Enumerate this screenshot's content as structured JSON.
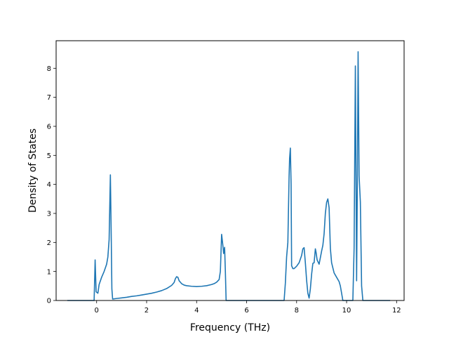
{
  "chart_data": {
    "type": "line",
    "title": "",
    "xlabel": "Frequency (THz)",
    "ylabel": "Density of States",
    "xlim": [
      -1.62,
      12.3
    ],
    "ylim": [
      0,
      8.95
    ],
    "xticks": [
      0,
      2,
      4,
      6,
      8,
      10,
      12
    ],
    "yticks": [
      0,
      1,
      2,
      3,
      4,
      5,
      6,
      7,
      8
    ],
    "xtick_labels": [
      "0",
      "2",
      "4",
      "6",
      "8",
      "10",
      "12"
    ],
    "ytick_labels": [
      "0",
      "1",
      "2",
      "3",
      "4",
      "5",
      "6",
      "7",
      "8"
    ],
    "grid": false,
    "legend": "none",
    "line_color": "#1f77b4",
    "series": [
      {
        "x": [
          -1.15,
          -0.1,
          -0.06,
          -0.02,
          0.05,
          0.1,
          0.2,
          0.3,
          0.4,
          0.45,
          0.5,
          0.55,
          0.58,
          0.61,
          0.64,
          0.8,
          1.0,
          1.2,
          1.4,
          1.6,
          1.8,
          2.0,
          2.2,
          2.4,
          2.6,
          2.8,
          3.0,
          3.1,
          3.15,
          3.2,
          3.25,
          3.3,
          3.4,
          3.5,
          3.6,
          3.8,
          4.0,
          4.2,
          4.4,
          4.6,
          4.7,
          4.8,
          4.9,
          4.95,
          5.0,
          5.05,
          5.08,
          5.12,
          5.15,
          5.18,
          5.3,
          6.0,
          7.0,
          7.5,
          7.55,
          7.6,
          7.65,
          7.7,
          7.72,
          7.75,
          7.78,
          7.8,
          7.85,
          7.9,
          8.0,
          8.1,
          8.2,
          8.25,
          8.3,
          8.35,
          8.4,
          8.45,
          8.5,
          8.55,
          8.6,
          8.65,
          8.7,
          8.75,
          8.78,
          8.82,
          8.9,
          9.0,
          9.05,
          9.1,
          9.15,
          9.2,
          9.25,
          9.3,
          9.35,
          9.4,
          9.5,
          9.6,
          9.7,
          9.75,
          9.8,
          9.85,
          9.9,
          10.0,
          10.25,
          10.3,
          10.35,
          10.4,
          10.43,
          10.46,
          10.5,
          10.55,
          10.6,
          10.65,
          10.7,
          11.0,
          11.5,
          11.72
        ],
        "y": [
          0,
          0,
          1.4,
          0.3,
          0.25,
          0.55,
          0.8,
          1.0,
          1.25,
          1.5,
          2.1,
          4.33,
          2.5,
          0.4,
          0.05,
          0.07,
          0.09,
          0.11,
          0.14,
          0.16,
          0.19,
          0.22,
          0.25,
          0.29,
          0.34,
          0.41,
          0.52,
          0.62,
          0.75,
          0.82,
          0.8,
          0.68,
          0.58,
          0.53,
          0.51,
          0.49,
          0.48,
          0.49,
          0.51,
          0.55,
          0.58,
          0.63,
          0.72,
          1.0,
          2.28,
          1.9,
          1.62,
          1.83,
          1.0,
          0.0,
          0,
          0,
          0,
          0,
          0.6,
          1.5,
          2.0,
          4.3,
          4.9,
          5.25,
          4.0,
          1.2,
          1.1,
          1.1,
          1.18,
          1.3,
          1.55,
          1.78,
          1.82,
          1.3,
          0.7,
          0.25,
          0.08,
          0.4,
          0.9,
          1.28,
          1.3,
          1.78,
          1.65,
          1.4,
          1.25,
          1.7,
          1.9,
          2.3,
          3.0,
          3.38,
          3.5,
          3.2,
          1.8,
          1.3,
          0.95,
          0.8,
          0.65,
          0.5,
          0.25,
          0.0,
          0.0,
          0,
          0,
          1.8,
          8.08,
          0.68,
          4.0,
          8.57,
          4.3,
          3.4,
          0.5,
          0,
          0,
          0,
          0,
          0
        ]
      }
    ]
  }
}
